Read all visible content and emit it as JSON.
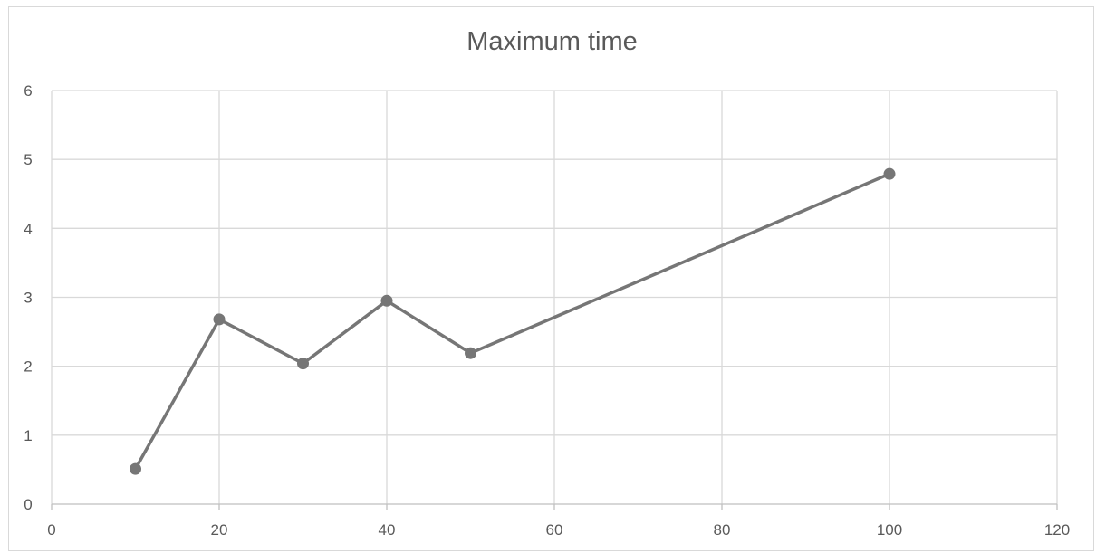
{
  "chart_data": {
    "type": "scatter",
    "title": "Maximum time",
    "xlabel": "",
    "ylabel": "",
    "xlim": [
      0,
      120
    ],
    "ylim": [
      0,
      6
    ],
    "x_ticks": [
      "0",
      "20",
      "40",
      "60",
      "80",
      "100",
      "120"
    ],
    "y_ticks": [
      "0",
      "1",
      "2",
      "3",
      "4",
      "5",
      "6"
    ],
    "grid": true,
    "series": [
      {
        "color": "#767676",
        "markers": true,
        "line": true,
        "x": [
          10,
          20,
          30,
          40,
          50,
          100
        ],
        "y": [
          0.51,
          2.68,
          2.04,
          2.95,
          2.19,
          4.79
        ]
      }
    ]
  }
}
